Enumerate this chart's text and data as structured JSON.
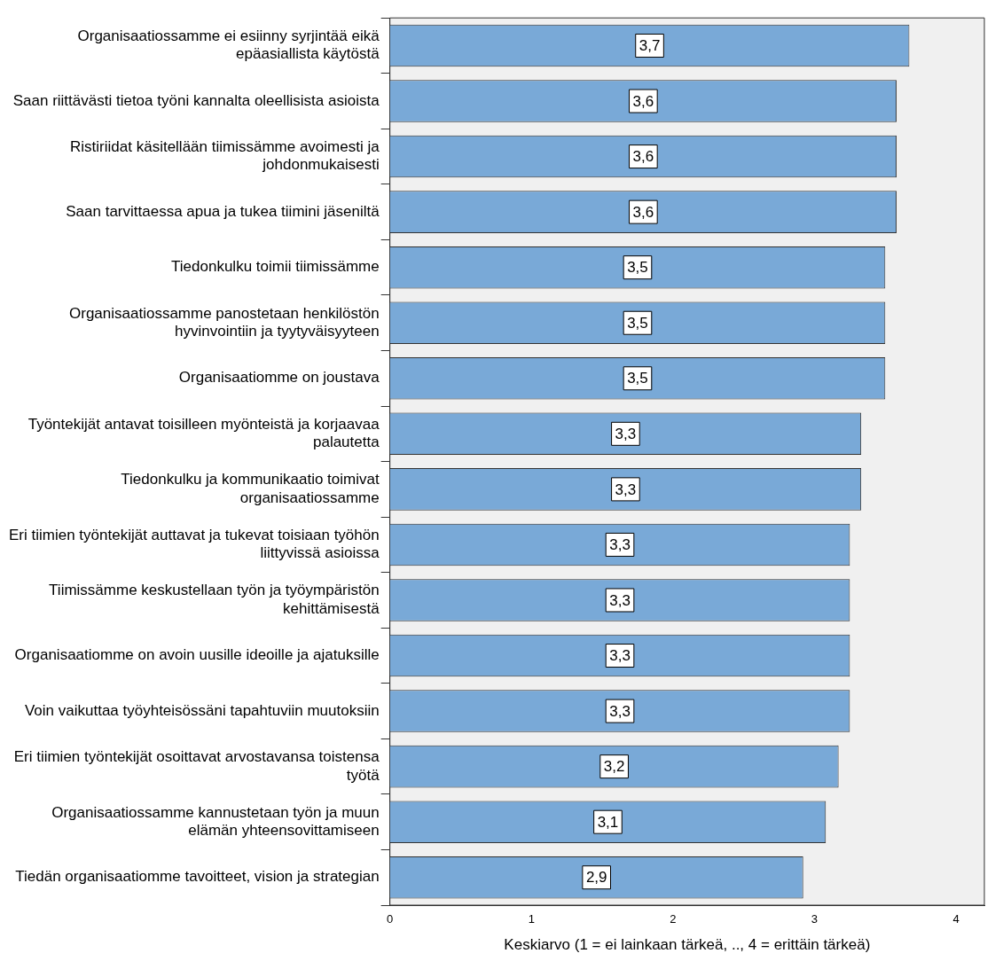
{
  "chart_data": {
    "type": "bar",
    "orientation": "horizontal",
    "xlabel": "Keskiarvo (1 = ei lainkaan tärkeä, .., 4 = erittäin tärkeä)",
    "categories": [
      "Organisaatiossamme ei esiinny syrjintää eikä\nepäasiallista käytöstä",
      "Saan riittävästi tietoa työni kannalta oleellisista asioista",
      "Ristiriidat käsitellään tiimissämme avoimesti ja\njohdonmukaisesti",
      "Saan tarvittaessa apua ja tukea tiimini jäseniltä",
      "Tiedonkulku toimii tiimissämme",
      "Organisaatiossamme panostetaan henkilöstön\nhyvinvointiin ja tyytyväisyyteen",
      "Organisaatiomme on joustava",
      "Työntekijät antavat toisilleen myönteistä ja korjaavaa\npalautetta",
      "Tiedonkulku ja kommunikaatio toimivat\norganisaatiossamme",
      "Eri tiimien työntekijät auttavat ja tukevat toisiaan työhön\nliittyvissä asioissa",
      "Tiimissämme keskustellaan työn ja työympäristön\nkehittämisestä",
      "Organisaatiomme on avoin uusille ideoille ja ajatuksille",
      "Voin vaikuttaa työyhteisössäni tapahtuviin muutoksiin",
      "Eri tiimien työntekijät osoittavat arvostavansa toistensa\ntyötä",
      "Organisaatiossamme kannustetaan työn ja muun\nelämän yhteensovittamiseen",
      "Tiedän organisaatiomme tavoitteet, vision ja strategian"
    ],
    "values": [
      3.67,
      3.58,
      3.58,
      3.58,
      3.5,
      3.5,
      3.5,
      3.33,
      3.33,
      3.25,
      3.25,
      3.25,
      3.25,
      3.17,
      3.08,
      2.92
    ],
    "value_labels": [
      "3,7",
      "3,6",
      "3,6",
      "3,6",
      "3,5",
      "3,5",
      "3,5",
      "3,3",
      "3,3",
      "3,3",
      "3,3",
      "3,3",
      "3,3",
      "3,2",
      "3,1",
      "2,9"
    ],
    "color": "#79a9d7",
    "xlim": [
      0,
      4.2
    ],
    "xticks": [
      0,
      1,
      2,
      3,
      4
    ],
    "grid": false,
    "legend": false
  }
}
